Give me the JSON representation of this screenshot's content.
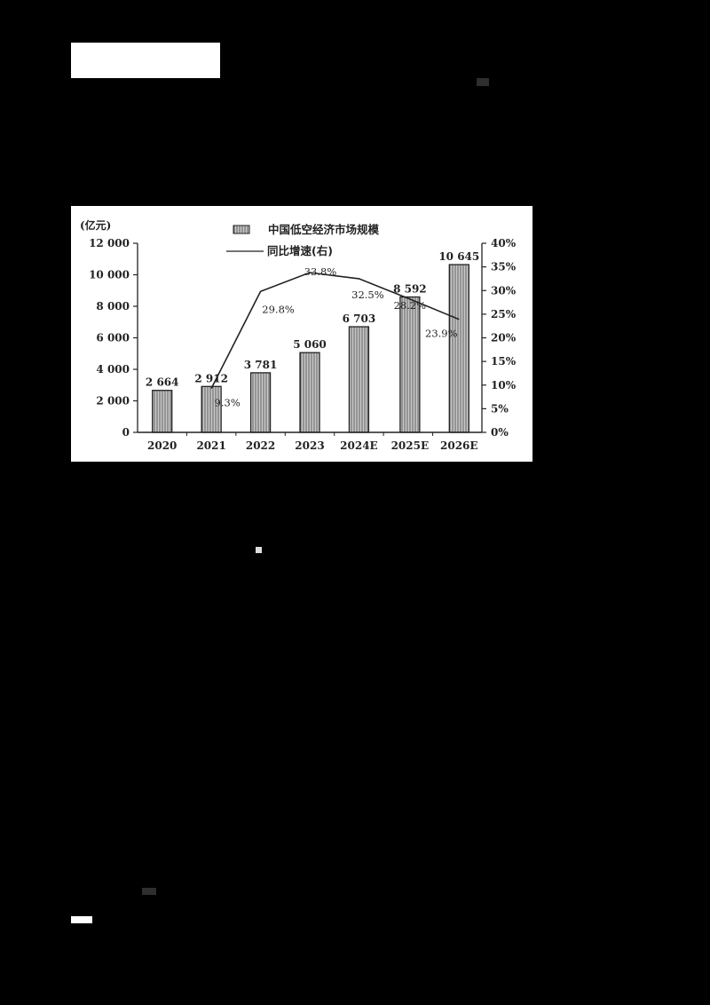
{
  "page": {
    "background": "#000000",
    "top_redaction_block": "",
    "footer_redaction_block": ""
  },
  "chart_data": {
    "type": "bar",
    "title": "",
    "categories": [
      "2020",
      "2021",
      "2022",
      "2023",
      "2024E",
      "2025E",
      "2026E"
    ],
    "series": [
      {
        "name": "中国低空经济市场规模",
        "type": "bar",
        "axis": "left",
        "values": [
          2664,
          2912,
          3781,
          5060,
          6703,
          8592,
          10645
        ],
        "labels": [
          "2 664",
          "2 912",
          "3 781",
          "5 060",
          "6 703",
          "8 592",
          "10 645"
        ]
      },
      {
        "name": "同比增速(右)",
        "type": "line",
        "axis": "right",
        "values": [
          null,
          9.3,
          29.8,
          33.8,
          32.5,
          28.2,
          23.9
        ],
        "labels": [
          "",
          "9.3%",
          "29.8%",
          "33.8%",
          "32.5%",
          "28.2%",
          "23.9%"
        ]
      }
    ],
    "ylabel": "(亿元)",
    "ylim": [
      0,
      12000
    ],
    "y_ticks": [
      "0",
      "2 000",
      "4 000",
      "6 000",
      "8 000",
      "10 000",
      "12 000"
    ],
    "y2lim": [
      0,
      40
    ],
    "y2_ticks": [
      "0%",
      "5%",
      "10%",
      "15%",
      "20%",
      "25%",
      "30%",
      "35%",
      "40%"
    ],
    "legend": [
      "中国低空经济市场规模",
      "同比增速(右)"
    ],
    "legend_position": "top-center",
    "grid": false,
    "bar_fill": "#bdbdbd",
    "line_color": "#222222"
  }
}
